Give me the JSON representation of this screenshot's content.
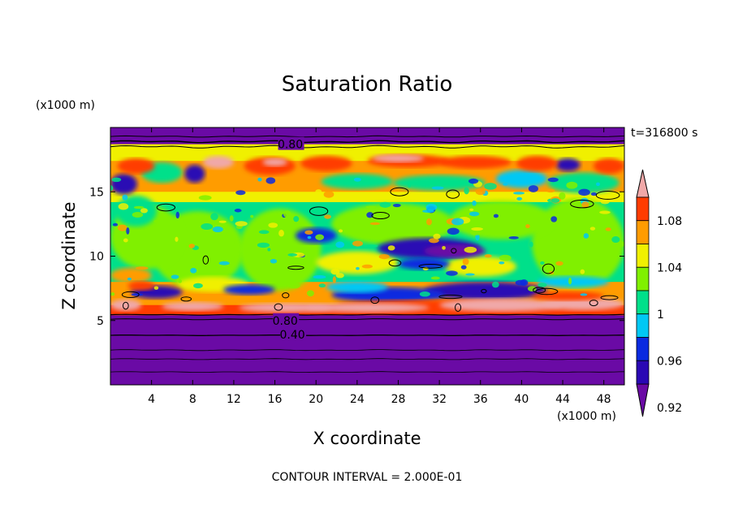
{
  "chart_data": {
    "type": "heatmap",
    "title": "Saturation Ratio",
    "time_label": "t=316800 s",
    "footer": "CONTOUR INTERVAL = 2.000E-01",
    "x_axis": {
      "label": "X coordinate",
      "unit_label": "(x1000 m)",
      "range": [
        0,
        50
      ],
      "ticks": [
        4,
        8,
        12,
        16,
        20,
        24,
        28,
        32,
        36,
        40,
        44,
        48
      ]
    },
    "y_axis": {
      "label": "Z coordinate",
      "unit_label": "(x1000 m)",
      "range": [
        0,
        20
      ],
      "ticks": [
        5,
        10,
        15
      ]
    },
    "colorbar": {
      "labels": [
        "1.08",
        "1.04",
        "1",
        "0.96",
        "0.92"
      ],
      "levels": [
        0.92,
        0.94,
        0.96,
        0.98,
        1.0,
        1.02,
        1.04,
        1.06,
        1.08,
        1.1
      ],
      "colors": [
        "#6a0aa5",
        "#2a08b4",
        "#0a2ae0",
        "#00c8f4",
        "#00e08a",
        "#80f000",
        "#f0f000",
        "#ff9c00",
        "#ff3c00",
        "#f0a8a8"
      ],
      "extend": "both"
    },
    "contour_labels": [
      {
        "text": "0.80",
        "x": 17.5,
        "z": 18.7
      },
      {
        "text": "0.80",
        "x": 17.0,
        "z": 5.0
      },
      {
        "text": "0.40",
        "x": 17.7,
        "z": 3.9
      }
    ]
  }
}
